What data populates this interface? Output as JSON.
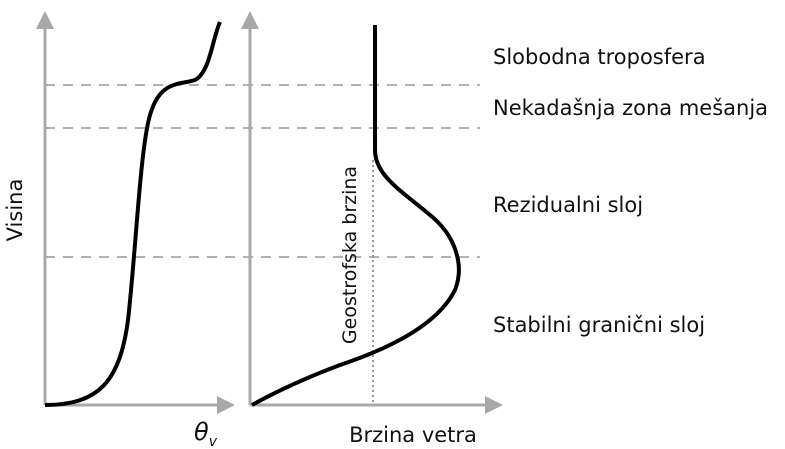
{
  "y_axis_label": "Visina",
  "left_x_label": {
    "symbol": "θ",
    "subscript": "v"
  },
  "right_x_label": "Brzina vetra",
  "geostrophic_label": "Geostrofska brzina",
  "layers": [
    "Slobodna troposfera",
    "Nekadašnja zona mešanja",
    "Rezidualni sloj",
    "Stabilni granični sloj"
  ]
}
